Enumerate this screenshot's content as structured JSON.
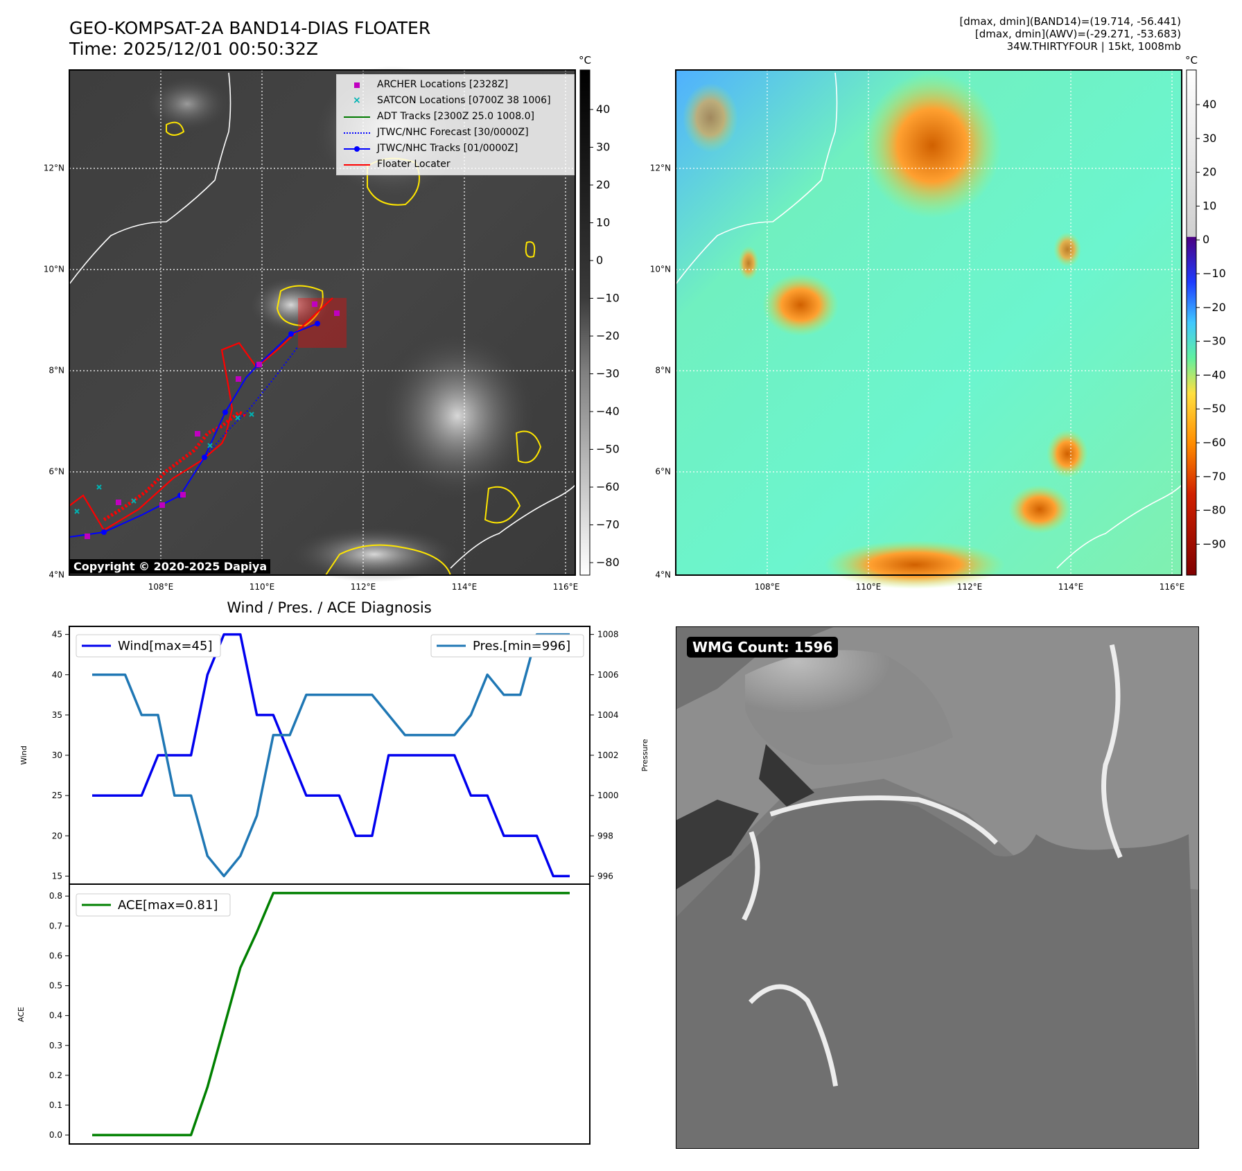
{
  "header": {
    "title_line1": "GEO-KOMPSAT-2A BAND14-DIAS FLOATER",
    "title_line2": "Time: 2025/12/01 00:50:32Z",
    "stats_line1": "[dmax, dmin](BAND14)=(19.714, -56.441)",
    "stats_line2": "[dmax, dmin](AWV)=(-29.271, -53.683)",
    "stats_line3": "34W.THIRTYFOUR | 15kt, 1008mb"
  },
  "ir_map": {
    "copyright": "Copyright © 2020-2025 Dapiya",
    "lon_labels": [
      "108°E",
      "110°E",
      "112°E",
      "114°E",
      "116°E"
    ],
    "lat_labels": [
      "4°N",
      "6°N",
      "8°N",
      "10°N",
      "12°N"
    ],
    "colorbar_unit": "°C",
    "colorbar_ticks": [
      "40",
      "30",
      "20",
      "10",
      "0",
      "−10",
      "−20",
      "−30",
      "−40",
      "−50",
      "−60",
      "−70",
      "−80"
    ],
    "legend": [
      {
        "label": "ARCHER Locations [2328Z]",
        "color": "#c000c0",
        "icon": "square-marker"
      },
      {
        "label": "SATCON Locations [0700Z 38 1006]",
        "color": "#00b3b3",
        "icon": "x-marker"
      },
      {
        "label": "ADT Tracks [2300Z 25.0 1008.0]",
        "color": "#007a00",
        "icon": "solid-line"
      },
      {
        "label": "JTWC/NHC Forecast [30/0000Z]",
        "color": "#0000ff",
        "icon": "dotted-line"
      },
      {
        "label": "JTWC/NHC Tracks [01/0000Z]",
        "color": "#0000ff",
        "icon": "line-with-dot"
      },
      {
        "label": "Floater Locater",
        "color": "#ff0000",
        "icon": "solid-line"
      }
    ]
  },
  "awv_map": {
    "lon_labels": [
      "108°E",
      "110°E",
      "112°E",
      "114°E",
      "116°E"
    ],
    "lat_labels": [
      "4°N",
      "6°N",
      "8°N",
      "10°N",
      "12°N"
    ],
    "colorbar_unit": "°C",
    "colorbar_ticks": [
      "40",
      "30",
      "20",
      "10",
      "0",
      "−10",
      "−20",
      "−30",
      "−40",
      "−50",
      "−60",
      "−70",
      "−80",
      "−90"
    ]
  },
  "diagnosis": {
    "title": "Wind / Pres. / ACE Diagnosis",
    "wind_axis_label": "Wind",
    "pressure_axis_label": "Pressure",
    "ace_axis_label": "ACE",
    "wind_legend": "Wind[max=45]",
    "pres_legend": "Pres.[min=996]",
    "ace_legend": "ACE[max=0.81]",
    "wind_color": "#0000ee",
    "pres_color": "#1f77b4",
    "ace_color": "#008000"
  },
  "chart_data": [
    {
      "type": "line",
      "series": [
        {
          "name": "Wind[max=45]",
          "axis": "left",
          "values": [
            25,
            25,
            25,
            25,
            30,
            30,
            30,
            40,
            45,
            45,
            35,
            35,
            30,
            25,
            25,
            25,
            20,
            20,
            30,
            30,
            30,
            30,
            30,
            25,
            25,
            20,
            20,
            20,
            15,
            15
          ]
        },
        {
          "name": "Pres.[min=996]",
          "axis": "right",
          "values": [
            1006,
            1006,
            1006,
            1004,
            1004,
            1000,
            1000,
            997,
            996,
            997,
            999,
            1003,
            1003,
            1005,
            1005,
            1005,
            1005,
            1005,
            1004,
            1003,
            1003,
            1003,
            1003,
            1004,
            1006,
            1005,
            1005,
            1008,
            1008,
            1008
          ]
        }
      ],
      "ylabel": "Wind",
      "y2label": "Pressure",
      "ylim": [
        14,
        46
      ],
      "y2lim": [
        995.6,
        1008.4
      ],
      "yticks": [
        15,
        20,
        25,
        30,
        35,
        40,
        45
      ],
      "y2ticks": [
        996,
        998,
        1000,
        1002,
        1004,
        1006,
        1008
      ]
    },
    {
      "type": "line",
      "series": [
        {
          "name": "ACE[max=0.81]",
          "values": [
            0,
            0,
            0,
            0,
            0,
            0,
            0,
            0.16,
            0.36,
            0.56,
            0.68,
            0.81,
            0.81,
            0.81,
            0.81,
            0.81,
            0.81,
            0.81,
            0.81,
            0.81,
            0.81,
            0.81,
            0.81,
            0.81,
            0.81,
            0.81,
            0.81,
            0.81,
            0.81,
            0.81
          ]
        }
      ],
      "ylabel": "ACE",
      "ylim": [
        -0.03,
        0.84
      ],
      "yticks": [
        0.0,
        0.1,
        0.2,
        0.3,
        0.4,
        0.5,
        0.6,
        0.7,
        0.8
      ]
    }
  ],
  "wmg": {
    "count_label": "WMG Count: 1596"
  }
}
